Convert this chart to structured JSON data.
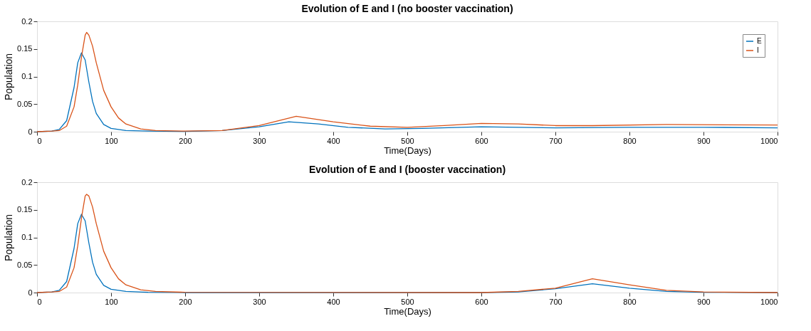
{
  "chart_data": [
    {
      "type": "line",
      "title": "Evolution of  E and I (no booster vaccination)",
      "xlabel": "Time(Days)",
      "ylabel": "Population",
      "xlim": [
        0,
        1000
      ],
      "ylim": [
        0,
        0.2
      ],
      "xticks": [
        0,
        100,
        200,
        300,
        400,
        500,
        600,
        700,
        800,
        900,
        1000
      ],
      "yticks": [
        0,
        0.05,
        0.1,
        0.15,
        0.2
      ],
      "grid": false,
      "legend": "top right",
      "line_style": "solid",
      "marker": "none",
      "series": [
        {
          "name": "E",
          "color": "#0072bd",
          "x": [
            0,
            20,
            30,
            40,
            50,
            55,
            60,
            65,
            70,
            75,
            80,
            90,
            100,
            120,
            150,
            200,
            250,
            300,
            340,
            380,
            420,
            470,
            520,
            600,
            700,
            800,
            900,
            1000
          ],
          "values": [
            0,
            0.001,
            0.004,
            0.02,
            0.08,
            0.125,
            0.143,
            0.13,
            0.09,
            0.055,
            0.033,
            0.013,
            0.006,
            0.002,
            0.001,
            0.0005,
            0.002,
            0.009,
            0.018,
            0.014,
            0.008,
            0.005,
            0.006,
            0.009,
            0.007,
            0.008,
            0.008,
            0.007
          ]
        },
        {
          "name": "I",
          "color": "#d95319",
          "x": [
            0,
            20,
            30,
            40,
            50,
            55,
            60,
            65,
            67,
            70,
            75,
            80,
            90,
            100,
            110,
            120,
            140,
            160,
            200,
            250,
            300,
            350,
            400,
            450,
            500,
            550,
            600,
            650,
            700,
            750,
            850,
            1000
          ],
          "values": [
            0,
            0.001,
            0.002,
            0.01,
            0.045,
            0.085,
            0.135,
            0.175,
            0.18,
            0.175,
            0.155,
            0.125,
            0.075,
            0.045,
            0.025,
            0.014,
            0.005,
            0.002,
            0.001,
            0.002,
            0.011,
            0.028,
            0.018,
            0.01,
            0.008,
            0.011,
            0.015,
            0.014,
            0.011,
            0.011,
            0.013,
            0.012
          ]
        }
      ]
    },
    {
      "type": "line",
      "title": "Evolution of  E and I (booster vaccination)",
      "xlabel": "Time(Days)",
      "ylabel": "Population",
      "xlim": [
        0,
        1000
      ],
      "ylim": [
        0,
        0.2
      ],
      "xticks": [
        0,
        100,
        200,
        300,
        400,
        500,
        600,
        700,
        800,
        900,
        1000
      ],
      "yticks": [
        0,
        0.05,
        0.1,
        0.15,
        0.2
      ],
      "grid": false,
      "legend": "top right",
      "line_style": "solid",
      "marker": "none",
      "series": [
        {
          "name": "E",
          "color": "#0072bd",
          "x": [
            0,
            20,
            30,
            40,
            50,
            55,
            60,
            65,
            70,
            75,
            80,
            90,
            100,
            120,
            150,
            200,
            300,
            400,
            500,
            600,
            650,
            700,
            750,
            800,
            850,
            900,
            1000
          ],
          "values": [
            0,
            0.001,
            0.004,
            0.02,
            0.08,
            0.125,
            0.142,
            0.13,
            0.09,
            0.055,
            0.033,
            0.013,
            0.006,
            0.002,
            0.0005,
            0,
            0,
            0,
            0,
            0,
            0.001,
            0.007,
            0.016,
            0.008,
            0.002,
            0.0005,
            0
          ]
        },
        {
          "name": "I",
          "color": "#d95319",
          "x": [
            0,
            20,
            30,
            40,
            50,
            55,
            60,
            65,
            67,
            70,
            75,
            80,
            90,
            100,
            110,
            120,
            140,
            160,
            200,
            600,
            650,
            700,
            750,
            800,
            850,
            900,
            1000
          ],
          "values": [
            0,
            0.001,
            0.002,
            0.01,
            0.045,
            0.085,
            0.135,
            0.175,
            0.178,
            0.175,
            0.155,
            0.125,
            0.075,
            0.045,
            0.025,
            0.014,
            0.005,
            0.002,
            0.0005,
            0,
            0.002,
            0.008,
            0.025,
            0.014,
            0.004,
            0.001,
            0
          ]
        }
      ]
    }
  ]
}
